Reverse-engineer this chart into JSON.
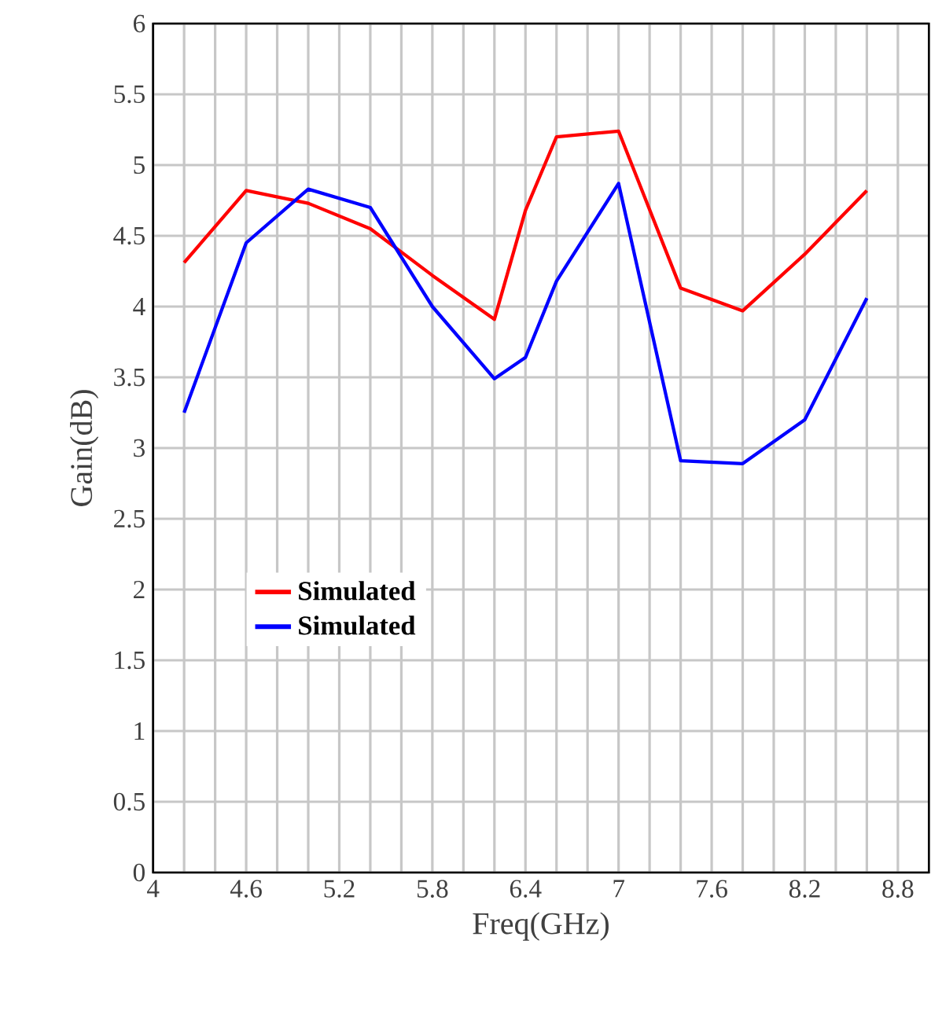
{
  "chart_data": {
    "type": "line",
    "xlabel": "Freq(GHz)",
    "ylabel": "Gain(dB)",
    "xlim": [
      4,
      9
    ],
    "ylim": [
      0,
      6
    ],
    "xticks": [
      4,
      {
        "value": 4.2,
        "label": null
      },
      {
        "value": 4.4,
        "label": null
      },
      4.6,
      {
        "value": 4.8,
        "label": null
      },
      {
        "value": 5.0,
        "label": null
      },
      5.2,
      {
        "value": 5.4,
        "label": null
      },
      {
        "value": 5.6,
        "label": null
      },
      5.8,
      {
        "value": 6.0,
        "label": null
      },
      {
        "value": 6.2,
        "label": null
      },
      6.4,
      {
        "value": 6.6,
        "label": null
      },
      {
        "value": 6.8,
        "label": null
      },
      7,
      {
        "value": 7.2,
        "label": null
      },
      {
        "value": 7.4,
        "label": null
      },
      7.6,
      {
        "value": 7.8,
        "label": null
      },
      {
        "value": 8.0,
        "label": null
      },
      8.2,
      {
        "value": 8.4,
        "label": null
      },
      {
        "value": 8.6,
        "label": null
      },
      8.8
    ],
    "yticks": [
      0,
      0.5,
      1,
      1.5,
      2,
      2.5,
      3,
      3.5,
      4,
      4.5,
      5,
      5.5,
      6
    ],
    "grid": true,
    "legend": "left",
    "marker": "none",
    "line_style": "solid",
    "x": [
      4.2,
      4.6,
      5.0,
      5.4,
      5.8,
      6.2,
      6.4,
      6.6,
      7.0,
      7.4,
      7.8,
      8.2,
      8.6
    ],
    "series": [
      {
        "name": "Simulated",
        "color": "#ff0000",
        "values": [
          4.31,
          4.82,
          4.73,
          4.55,
          4.22,
          3.91,
          4.68,
          5.2,
          5.24,
          4.13,
          3.97,
          4.37,
          4.82
        ]
      },
      {
        "name": "Simulated",
        "color": "#0000ff",
        "values": [
          3.25,
          4.45,
          4.83,
          4.7,
          4.0,
          3.49,
          3.64,
          4.18,
          4.87,
          2.91,
          2.89,
          3.2,
          4.06
        ]
      }
    ]
  }
}
